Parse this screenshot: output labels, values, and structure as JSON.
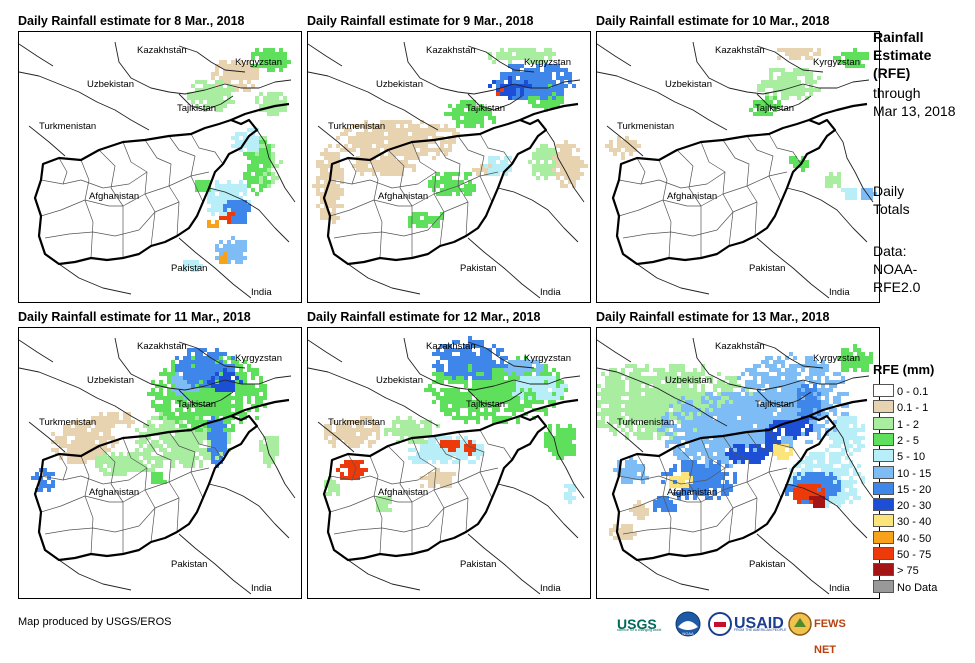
{
  "panels": [
    {
      "title": "Daily Rainfall estimate for 8 Mar., 2018",
      "day": 8
    },
    {
      "title": "Daily Rainfall estimate for 9 Mar., 2018",
      "day": 9
    },
    {
      "title": "Daily Rainfall estimate for 10 Mar., 2018",
      "day": 10
    },
    {
      "title": "Daily Rainfall estimate for 11 Mar., 2018",
      "day": 11
    },
    {
      "title": "Daily Rainfall estimate for 12 Mar., 2018",
      "day": 12
    },
    {
      "title": "Daily Rainfall estimate for 13 Mar., 2018",
      "day": 13
    }
  ],
  "map_labels": {
    "kazakhstan": "Kazakhstan",
    "kyrgyzstan": "Kyrgyzstan",
    "uzbekistan": "Uzbekistan",
    "tajikistan": "Tajikistan",
    "turkmenistan": "Turkmenistan",
    "afghanistan": "Afghanistan",
    "pakistan": "Pakistan",
    "india": "India"
  },
  "sidebar": {
    "title_lines": [
      "Rainfall",
      "Estimate",
      "(RFE)"
    ],
    "period_lines": [
      "through",
      "Mar 13, 2018"
    ],
    "totals_lines": [
      "Daily",
      "Totals"
    ],
    "source_lines": [
      "Data:",
      "NOAA-",
      "RFE2.0"
    ]
  },
  "legend": {
    "title": "RFE (mm)",
    "items": [
      {
        "label": "0 - 0.1",
        "color": "#ffffff"
      },
      {
        "label": "0.1 - 1",
        "color": "#e8d3b0"
      },
      {
        "label": "1 - 2",
        "color": "#a8eda0"
      },
      {
        "label": "2 - 5",
        "color": "#5fe05c"
      },
      {
        "label": "5 - 10",
        "color": "#b7eef8"
      },
      {
        "label": "10 - 15",
        "color": "#7dbcf5"
      },
      {
        "label": "15 - 20",
        "color": "#3f86ea"
      },
      {
        "label": "20 - 30",
        "color": "#1d4fd6"
      },
      {
        "label": "30 - 40",
        "color": "#fde47a"
      },
      {
        "label": "40 - 50",
        "color": "#f7a21a"
      },
      {
        "label": "50 - 75",
        "color": "#ec3a0a"
      },
      {
        "label": "> 75",
        "color": "#a51414"
      },
      {
        "label": "No Data",
        "color": "#999999"
      }
    ]
  },
  "credit": "Map produced by USGS/EROS",
  "logos": {
    "usgs": "USGS",
    "usgs_tagline": "science for a changing world",
    "noaa": "NOAA",
    "usaid": "USAID",
    "usaid_tagline": "FROM THE AMERICAN PEOPLE",
    "fewsnet": "FEWS NET"
  }
}
